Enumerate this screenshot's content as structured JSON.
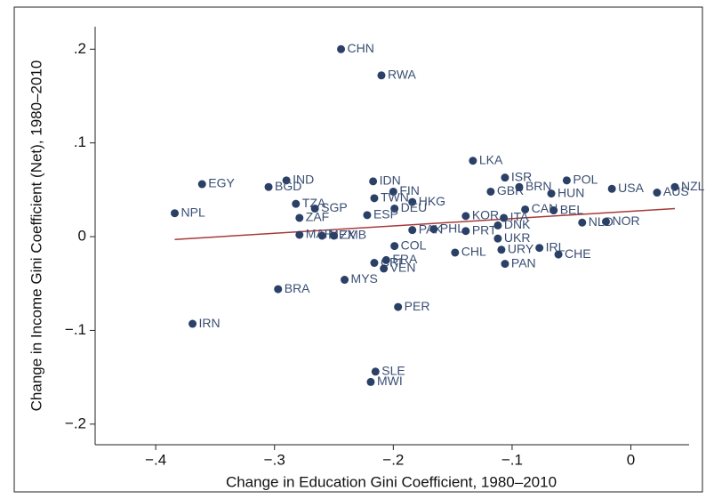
{
  "chart_data": {
    "type": "scatter",
    "x_label": "Change in Education Gini Coefficient, 1980–2010",
    "y_label": "Change in Income Gini Coefficient (Net), 1980–2010",
    "xlim": [
      -0.451,
      0.049
    ],
    "ylim": [
      -0.222,
      0.224
    ],
    "xticks": [
      {
        "value": -0.4,
        "label": "−.4"
      },
      {
        "value": -0.3,
        "label": "−.3"
      },
      {
        "value": -0.2,
        "label": "−.2"
      },
      {
        "value": -0.1,
        "label": "−.1"
      },
      0
    ],
    "yticks": [
      {
        "value": -0.2,
        "label": "−.2"
      },
      {
        "value": -0.1,
        "label": "−.1"
      },
      0,
      {
        "value": 0.1,
        "label": ".1"
      },
      {
        "value": 0.2,
        "label": ".2"
      }
    ],
    "series": [
      {
        "color": "#2b4066",
        "labels": [
          "CHN",
          "RWA",
          "LKA",
          "ISR",
          "POL",
          "IND",
          "EGY",
          "BGD",
          "IDN",
          "USA",
          "NZL",
          "AUS",
          "FIN",
          "GBR",
          "BRN",
          "HUN",
          "TWN",
          "TZA",
          "HKG",
          "SGP",
          "DEU",
          "CAN",
          "BEL",
          "ESP",
          "NPL",
          "ZAF",
          "KOR",
          "ITA",
          "NLD",
          "NOR",
          "MAR",
          "MEX",
          "ZMB",
          "PAK",
          "PHL",
          "PRT",
          "DNK",
          "BRA",
          "MYS",
          "COL",
          "CHL",
          "UKR",
          "URY",
          "PAN",
          "IRL",
          "CHE",
          "CRI",
          "FRA",
          "VEN",
          "PER",
          "IRN",
          "SLE",
          "MWI"
        ],
        "x": [
          -0.244,
          -0.21,
          -0.133,
          -0.106,
          -0.054,
          -0.29,
          -0.361,
          -0.305,
          -0.217,
          -0.016,
          0.037,
          0.022,
          -0.2,
          -0.118,
          -0.094,
          -0.067,
          -0.216,
          -0.282,
          -0.184,
          -0.266,
          -0.199,
          -0.089,
          -0.065,
          -0.222,
          -0.384,
          -0.279,
          -0.139,
          -0.107,
          -0.041,
          -0.021,
          -0.279,
          -0.26,
          -0.25,
          -0.184,
          -0.166,
          -0.139,
          -0.112,
          -0.297,
          -0.241,
          -0.199,
          -0.148,
          -0.112,
          -0.109,
          -0.106,
          -0.077,
          -0.061,
          -0.216,
          -0.206,
          -0.208,
          -0.196,
          -0.369,
          -0.215,
          -0.219
        ],
        "y": [
          0.2,
          0.172,
          0.081,
          0.063,
          0.06,
          0.06,
          0.056,
          0.053,
          0.059,
          0.051,
          0.053,
          0.047,
          0.048,
          0.048,
          0.053,
          0.046,
          0.041,
          0.035,
          0.037,
          0.03,
          0.03,
          0.029,
          0.028,
          0.023,
          0.025,
          0.02,
          0.022,
          0.02,
          0.015,
          0.016,
          0.002,
          0.001,
          0.001,
          0.007,
          0.008,
          0.006,
          0.012,
          -0.056,
          -0.046,
          -0.01,
          -0.017,
          -0.002,
          -0.014,
          -0.029,
          -0.012,
          -0.019,
          -0.028,
          -0.025,
          -0.034,
          -0.075,
          -0.093,
          -0.144,
          -0.155
        ]
      }
    ],
    "fit_line": {
      "color": "#a83a3a",
      "x": [
        -0.384,
        0.037
      ],
      "y": [
        -0.003,
        0.03
      ]
    }
  }
}
